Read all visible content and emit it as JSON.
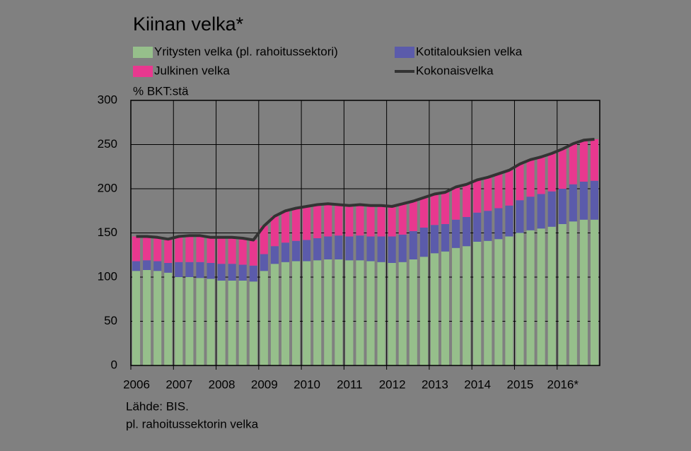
{
  "chart_data": {
    "type": "stacked-bar",
    "title": "Kiinan velka*",
    "y_label": "% BKT:stä",
    "notes": [
      "Lähde: BIS.",
      "pl. rahoitussektorin velka"
    ],
    "categories": [
      "2006",
      null,
      null,
      null,
      "2007",
      null,
      null,
      null,
      "2008",
      null,
      null,
      null,
      "2009",
      null,
      null,
      null,
      "2010",
      null,
      null,
      null,
      "2011",
      null,
      null,
      null,
      "2012",
      null,
      null,
      null,
      "2013",
      null,
      null,
      null,
      "2014",
      null,
      null,
      null,
      "2015",
      null,
      null,
      null,
      "2016*",
      null,
      null,
      null
    ],
    "series": [
      {
        "name": "Yritysten velka (pl. rahoitussektori)",
        "color": "#96bf8b",
        "values": [
          107,
          108,
          107,
          105,
          100,
          100,
          99,
          98,
          96,
          96,
          96,
          95,
          107,
          115,
          117,
          118,
          118,
          119,
          120,
          120,
          119,
          119,
          118,
          117,
          116,
          117,
          120,
          123,
          127,
          129,
          133,
          135,
          140,
          141,
          143,
          146,
          150,
          153,
          155,
          157,
          160,
          163,
          165,
          165
        ]
      },
      {
        "name": "Kotitalouksien velka",
        "color": "#5b5bab",
        "values": [
          11,
          11,
          11,
          11,
          17,
          17,
          18,
          18,
          19,
          19,
          18,
          18,
          19,
          20,
          22,
          23,
          24,
          25,
          26,
          27,
          27,
          28,
          28,
          29,
          30,
          31,
          32,
          33,
          32,
          31,
          32,
          33,
          33,
          34,
          35,
          35,
          37,
          38,
          39,
          40,
          40,
          42,
          43,
          44
        ]
      },
      {
        "name": "Julkinen velka",
        "color": "#e8388f",
        "values": [
          28,
          27,
          27,
          27,
          29,
          30,
          30,
          29,
          30,
          30,
          30,
          29,
          32,
          34,
          36,
          37,
          38,
          38,
          37,
          35,
          35,
          35,
          35,
          35,
          34,
          35,
          34,
          34,
          35,
          36,
          37,
          37,
          37,
          38,
          39,
          40,
          41,
          42,
          42,
          43,
          45,
          46,
          47,
          47
        ]
      },
      {
        "name": "Kokonaisvelka",
        "type": "line",
        "color": "#333333",
        "values": [
          146,
          146,
          145,
          143,
          146,
          147,
          147,
          145,
          145,
          145,
          144,
          142,
          158,
          169,
          175,
          178,
          180,
          182,
          183,
          182,
          181,
          182,
          181,
          181,
          180,
          183,
          186,
          190,
          194,
          196,
          202,
          205,
          210,
          213,
          217,
          221,
          228,
          233,
          236,
          240,
          245,
          251,
          255,
          256
        ]
      }
    ],
    "ylim": [
      0,
      300
    ],
    "yticks": [
      0,
      50,
      100,
      150,
      200,
      250,
      300
    ],
    "grid": true
  }
}
